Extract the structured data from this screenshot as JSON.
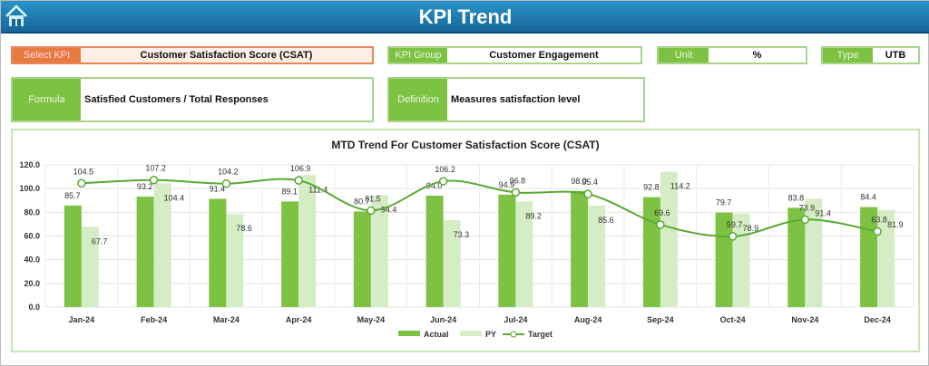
{
  "header": {
    "title": "KPI Trend",
    "home_icon": "home-icon"
  },
  "filters": {
    "select_kpi_label": "Select KPI",
    "select_kpi_value": "Customer Satisfaction Score (CSAT)",
    "kpi_group_label": "KPI Group",
    "kpi_group_value": "Customer Engagement",
    "unit_label": "Unit",
    "unit_value": "%",
    "type_label": "Type",
    "type_value": "UTB",
    "formula_label": "Formula",
    "formula_value": "Satisfied Customers / Total Responses",
    "definition_label": "Definition",
    "definition_value": "Measures satisfaction level"
  },
  "colors": {
    "actual": "#7dc243",
    "py": "#d5edc5",
    "target": "#5aa832",
    "accent_orange": "#e8793f",
    "header": "#1f7fb5"
  },
  "chart_data": {
    "type": "bar",
    "title": "MTD Trend For Customer Satisfaction Score (CSAT)",
    "categories": [
      "Jan-24",
      "Feb-24",
      "Mar-24",
      "Apr-24",
      "May-24",
      "Jun-24",
      "Jul-24",
      "Aug-24",
      "Sep-24",
      "Oct-24",
      "Nov-24",
      "Dec-24"
    ],
    "ylim": [
      0,
      120
    ],
    "yticks": [
      "0.0",
      "20.0",
      "40.0",
      "60.0",
      "80.0",
      "100.0",
      "120.0"
    ],
    "grid": true,
    "legend_position": "bottom",
    "series": [
      {
        "name": "Actual",
        "type": "bar",
        "values": [
          85.7,
          93.2,
          91.4,
          89.1,
          80.7,
          94.0,
          94.9,
          98.0,
          92.8,
          79.7,
          83.8,
          84.4
        ]
      },
      {
        "name": "PY",
        "type": "bar",
        "values": [
          67.7,
          104.4,
          78.6,
          111.4,
          94.4,
          73.3,
          89.2,
          85.6,
          114.2,
          78.9,
          91.4,
          81.9
        ]
      },
      {
        "name": "Target",
        "type": "line",
        "values": [
          104.5,
          107.2,
          104.2,
          106.9,
          81.5,
          106.2,
          96.8,
          95.4,
          69.6,
          59.7,
          73.9,
          63.8
        ]
      }
    ]
  }
}
